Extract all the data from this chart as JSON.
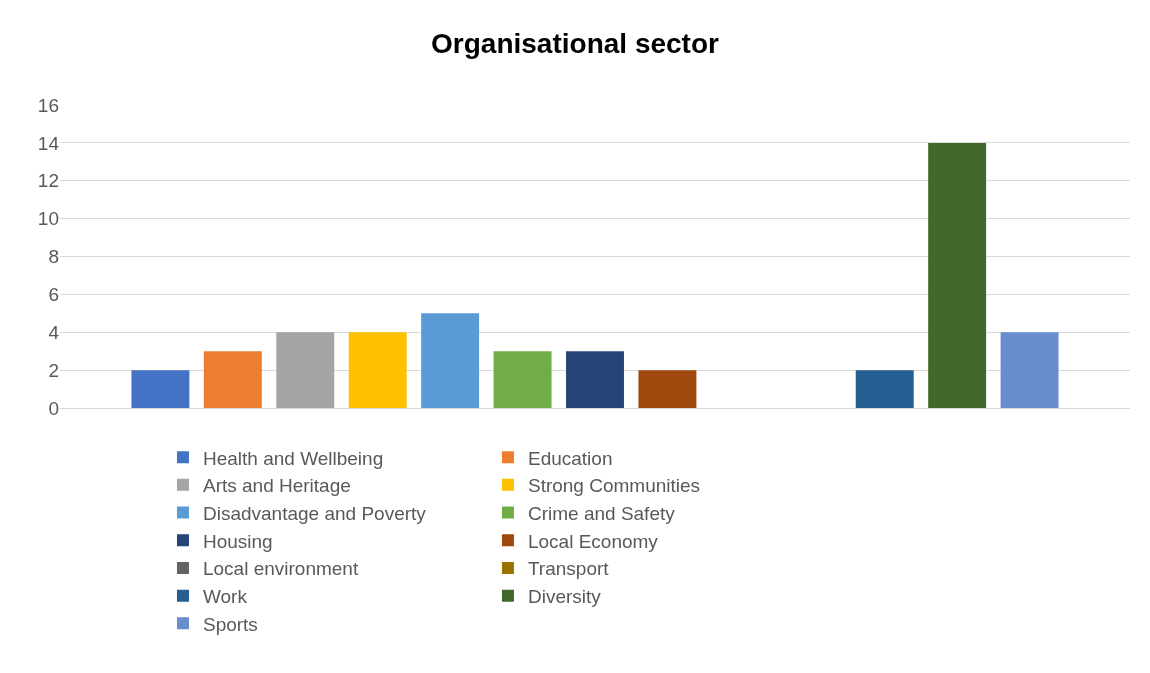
{
  "chart_data": {
    "type": "bar",
    "title": "Organisational sector",
    "categories": [
      null
    ],
    "series": [
      {
        "name": "Health and Wellbeing",
        "color": "#4472c4",
        "values": [
          2
        ]
      },
      {
        "name": "Education",
        "color": "#ed7d31",
        "values": [
          3
        ]
      },
      {
        "name": "Arts and Heritage",
        "color": "#a5a5a5",
        "values": [
          4
        ]
      },
      {
        "name": "Strong Communities",
        "color": "#ffc000",
        "values": [
          4
        ]
      },
      {
        "name": "Disadvantage and Poverty",
        "color": "#5b9bd5",
        "values": [
          5
        ]
      },
      {
        "name": "Crime and Safety",
        "color": "#70ad47",
        "values": [
          3
        ]
      },
      {
        "name": "Housing",
        "color": "#264478",
        "values": [
          3
        ]
      },
      {
        "name": "Local Economy",
        "color": "#9e480e",
        "values": [
          2
        ]
      },
      {
        "name": "Local environment",
        "color": "#636363",
        "values": [
          0
        ]
      },
      {
        "name": "Transport",
        "color": "#997300",
        "values": [
          0
        ]
      },
      {
        "name": "Work",
        "color": "#255e91",
        "values": [
          2
        ]
      },
      {
        "name": "Diversity",
        "color": "#43682b",
        "values": [
          14
        ]
      },
      {
        "name": "Sports",
        "color": "#698ed0",
        "values": [
          4
        ]
      }
    ],
    "ylim": [
      0,
      16
    ],
    "yticks": [
      0,
      2,
      4,
      6,
      8,
      10,
      12,
      14,
      16
    ],
    "grid": "y",
    "legend": "bottom"
  }
}
